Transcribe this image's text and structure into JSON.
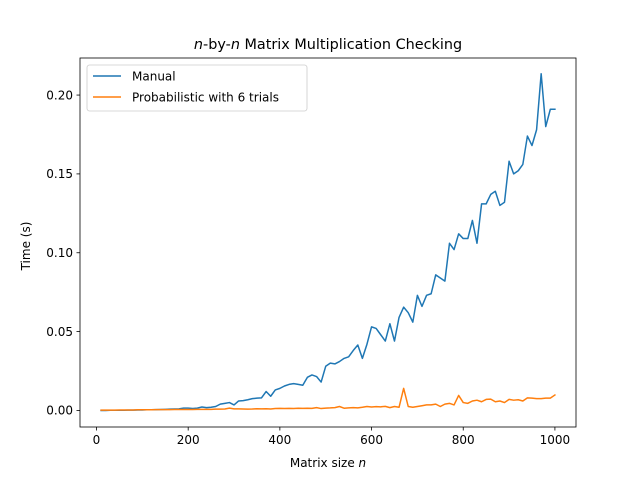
{
  "chart_data": {
    "type": "line",
    "title": "n-by-n Matrix Multiplication Checking",
    "title_parts": [
      {
        "text": "n",
        "italic": true
      },
      {
        "text": "-by-",
        "italic": false
      },
      {
        "text": "n",
        "italic": true
      },
      {
        "text": " Matrix Multiplication Checking",
        "italic": false
      }
    ],
    "xlabel": "Matrix size n",
    "xlabel_parts": [
      {
        "text": "Matrix size ",
        "italic": false
      },
      {
        "text": "n",
        "italic": true
      }
    ],
    "ylabel": "Time (s)",
    "xlim": [
      -36,
      1046
    ],
    "ylim": [
      -0.0105,
      0.2235
    ],
    "xticks": [
      0,
      200,
      400,
      600,
      800,
      1000
    ],
    "xtick_labels": [
      "0",
      "200",
      "400",
      "600",
      "800",
      "1000"
    ],
    "yticks": [
      0.0,
      0.05,
      0.1,
      0.15,
      0.2
    ],
    "ytick_labels": [
      "0.00",
      "0.05",
      "0.10",
      "0.15",
      "0.20"
    ],
    "grid": false,
    "legend_position": "top-left",
    "colors": {
      "manual": "#1f77b4",
      "probabilistic": "#ff7f0e"
    },
    "x": [
      10,
      20,
      30,
      40,
      50,
      60,
      70,
      80,
      90,
      100,
      110,
      120,
      130,
      140,
      150,
      160,
      170,
      180,
      190,
      200,
      210,
      220,
      230,
      240,
      250,
      260,
      270,
      280,
      290,
      300,
      310,
      320,
      330,
      340,
      350,
      360,
      370,
      380,
      390,
      400,
      410,
      420,
      430,
      440,
      450,
      460,
      470,
      480,
      490,
      500,
      510,
      520,
      530,
      540,
      550,
      560,
      570,
      580,
      590,
      600,
      610,
      620,
      630,
      640,
      650,
      660,
      670,
      680,
      690,
      700,
      710,
      720,
      730,
      740,
      750,
      760,
      770,
      780,
      790,
      800,
      810,
      820,
      830,
      840,
      850,
      860,
      870,
      880,
      890,
      900,
      910,
      920,
      930,
      940,
      950,
      960,
      970,
      980,
      990,
      1000
    ],
    "series": [
      {
        "name": "Manual",
        "values": [
          0.0,
          0.0,
          0.0001,
          0.0001,
          0.0001,
          0.0001,
          0.0002,
          0.0002,
          0.0003,
          0.0003,
          0.0004,
          0.0004,
          0.0005,
          0.0006,
          0.0007,
          0.0008,
          0.0009,
          0.001,
          0.0015,
          0.0015,
          0.0012,
          0.0015,
          0.0022,
          0.0018,
          0.002,
          0.0025,
          0.004,
          0.0045,
          0.005,
          0.0035,
          0.006,
          0.0062,
          0.0068,
          0.0075,
          0.0078,
          0.008,
          0.012,
          0.009,
          0.013,
          0.014,
          0.0155,
          0.0165,
          0.017,
          0.0165,
          0.016,
          0.021,
          0.0225,
          0.0215,
          0.018,
          0.028,
          0.03,
          0.0295,
          0.031,
          0.033,
          0.034,
          0.038,
          0.0415,
          0.033,
          0.042,
          0.053,
          0.052,
          0.048,
          0.044,
          0.055,
          0.044,
          0.059,
          0.0655,
          0.062,
          0.056,
          0.073,
          0.066,
          0.073,
          0.074,
          0.086,
          0.084,
          0.082,
          0.106,
          0.102,
          0.112,
          0.109,
          0.109,
          0.1205,
          0.106,
          0.131,
          0.131,
          0.137,
          0.139,
          0.13,
          0.132,
          0.158,
          0.15,
          0.152,
          0.156,
          0.174,
          0.168,
          0.178,
          0.2135,
          0.18,
          0.191,
          0.191
        ]
      },
      {
        "name": "Probabilistic with 6 trials",
        "values": [
          0.0002,
          0.0002,
          0.0002,
          0.0002,
          0.0003,
          0.0003,
          0.0003,
          0.0003,
          0.0004,
          0.0004,
          0.0004,
          0.0004,
          0.0005,
          0.0005,
          0.0005,
          0.0005,
          0.0006,
          0.0006,
          0.0006,
          0.0006,
          0.0006,
          0.0007,
          0.0007,
          0.0007,
          0.0007,
          0.0008,
          0.0008,
          0.0009,
          0.0015,
          0.001,
          0.001,
          0.0009,
          0.0008,
          0.0009,
          0.0011,
          0.001,
          0.0011,
          0.0009,
          0.0012,
          0.0013,
          0.0012,
          0.0013,
          0.0012,
          0.0014,
          0.0013,
          0.0014,
          0.0013,
          0.0018,
          0.0012,
          0.0015,
          0.0016,
          0.0018,
          0.0025,
          0.0014,
          0.0016,
          0.0018,
          0.0016,
          0.002,
          0.0025,
          0.0022,
          0.0024,
          0.0023,
          0.0026,
          0.0018,
          0.0025,
          0.002,
          0.014,
          0.0025,
          0.002,
          0.0025,
          0.003,
          0.0035,
          0.0035,
          0.004,
          0.0025,
          0.004,
          0.0045,
          0.0035,
          0.0095,
          0.005,
          0.0045,
          0.006,
          0.0065,
          0.0055,
          0.007,
          0.0072,
          0.0055,
          0.006,
          0.005,
          0.007,
          0.0065,
          0.0068,
          0.006,
          0.008,
          0.0078,
          0.0075,
          0.0075,
          0.0078,
          0.0078,
          0.0098
        ]
      }
    ]
  }
}
